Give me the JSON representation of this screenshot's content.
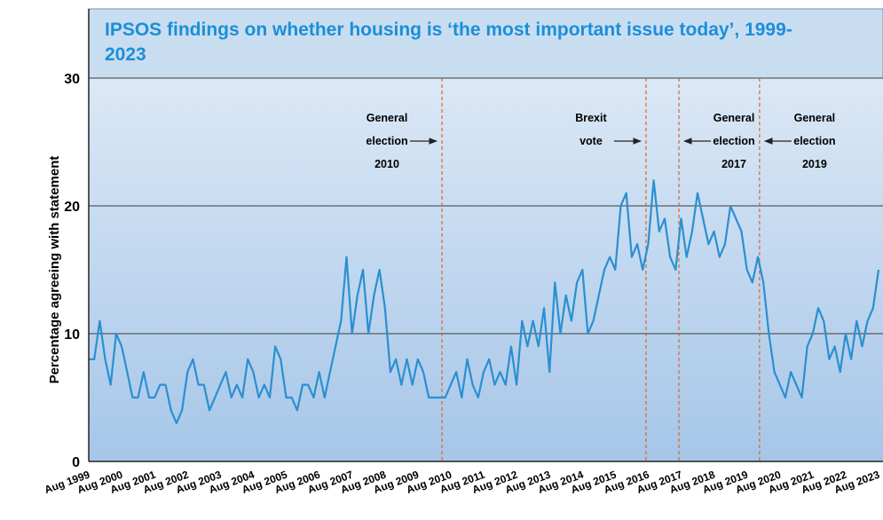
{
  "chart_data": {
    "type": "line",
    "title": "IPSOS findings on whether housing is ‘the most important issue today’, 1999-2023",
    "ylabel": "Percentage agreeing with statement",
    "color": "#2a8fd1",
    "grid": true,
    "ylim": [
      0,
      30
    ],
    "yticks": [
      0,
      10,
      20,
      30
    ],
    "categories": [
      "Aug 1999",
      null,
      null,
      null,
      null,
      null,
      "Aug 2000",
      null,
      null,
      null,
      null,
      null,
      "Aug 2001",
      null,
      null,
      null,
      null,
      null,
      "Aug 2002",
      null,
      null,
      null,
      null,
      null,
      "Aug 2003",
      null,
      null,
      null,
      null,
      null,
      "Aug 2004",
      null,
      null,
      null,
      null,
      null,
      "Aug 2005",
      null,
      null,
      null,
      null,
      null,
      "Aug 2006",
      null,
      null,
      null,
      null,
      null,
      "Aug 2007",
      null,
      null,
      null,
      null,
      null,
      "Aug 2008",
      null,
      null,
      null,
      null,
      null,
      "Aug 2009",
      null,
      null,
      null,
      null,
      null,
      "Aug 2010",
      null,
      null,
      null,
      null,
      null,
      "Aug 2011",
      null,
      null,
      null,
      null,
      null,
      "Aug 2012",
      null,
      null,
      null,
      null,
      null,
      "Aug 2013",
      null,
      null,
      null,
      null,
      null,
      "Aug 2014",
      null,
      null,
      null,
      null,
      null,
      "Aug 2015",
      null,
      null,
      null,
      null,
      null,
      "Aug 2016",
      null,
      null,
      null,
      null,
      null,
      "Aug 2017",
      null,
      null,
      null,
      null,
      null,
      "Aug 2018",
      null,
      null,
      null,
      null,
      null,
      "Aug 2019",
      null,
      null,
      null,
      null,
      null,
      "Aug 2020",
      null,
      null,
      null,
      null,
      null,
      "Aug 2021",
      null,
      null,
      null,
      null,
      null,
      "Aug 2022",
      null,
      null,
      null,
      null,
      null,
      "Aug 2023"
    ],
    "values": [
      8,
      8,
      11,
      8,
      6,
      10,
      9,
      7,
      5,
      5,
      7,
      5,
      5,
      6,
      6,
      4,
      3,
      4,
      7,
      8,
      6,
      6,
      4,
      5,
      6,
      7,
      5,
      6,
      5,
      8,
      7,
      5,
      6,
      5,
      9,
      8,
      5,
      5,
      4,
      6,
      6,
      5,
      7,
      5,
      7,
      9,
      11,
      16,
      10,
      13,
      15,
      10,
      13,
      15,
      12,
      7,
      8,
      6,
      8,
      6,
      8,
      7,
      5,
      5,
      5,
      5,
      6,
      7,
      5,
      8,
      6,
      5,
      7,
      8,
      6,
      7,
      6,
      9,
      6,
      11,
      9,
      11,
      9,
      12,
      7,
      14,
      10,
      13,
      11,
      14,
      15,
      10,
      11,
      13,
      15,
      16,
      15,
      20,
      21,
      16,
      17,
      15,
      17,
      22,
      18,
      19,
      16,
      15,
      19,
      16,
      18,
      21,
      19,
      17,
      18,
      16,
      17,
      20,
      19,
      18,
      15,
      14,
      16,
      14,
      10,
      7,
      6,
      5,
      7,
      6,
      5,
      9,
      10,
      12,
      11,
      8,
      9,
      7,
      10,
      8,
      11,
      9,
      11,
      12,
      15
    ],
    "events": [
      {
        "lines": [
          "General",
          "election",
          "2010"
        ],
        "x": 64.4,
        "side": "left"
      },
      {
        "lines": [
          "Brexit",
          "vote"
        ],
        "x": 101.6,
        "side": "left"
      },
      {
        "lines": [
          "General",
          "election",
          "2017"
        ],
        "x": 107.6,
        "side": "right"
      },
      {
        "lines": [
          "General",
          "election",
          "2019"
        ],
        "x": 122.3,
        "side": "right"
      }
    ]
  }
}
